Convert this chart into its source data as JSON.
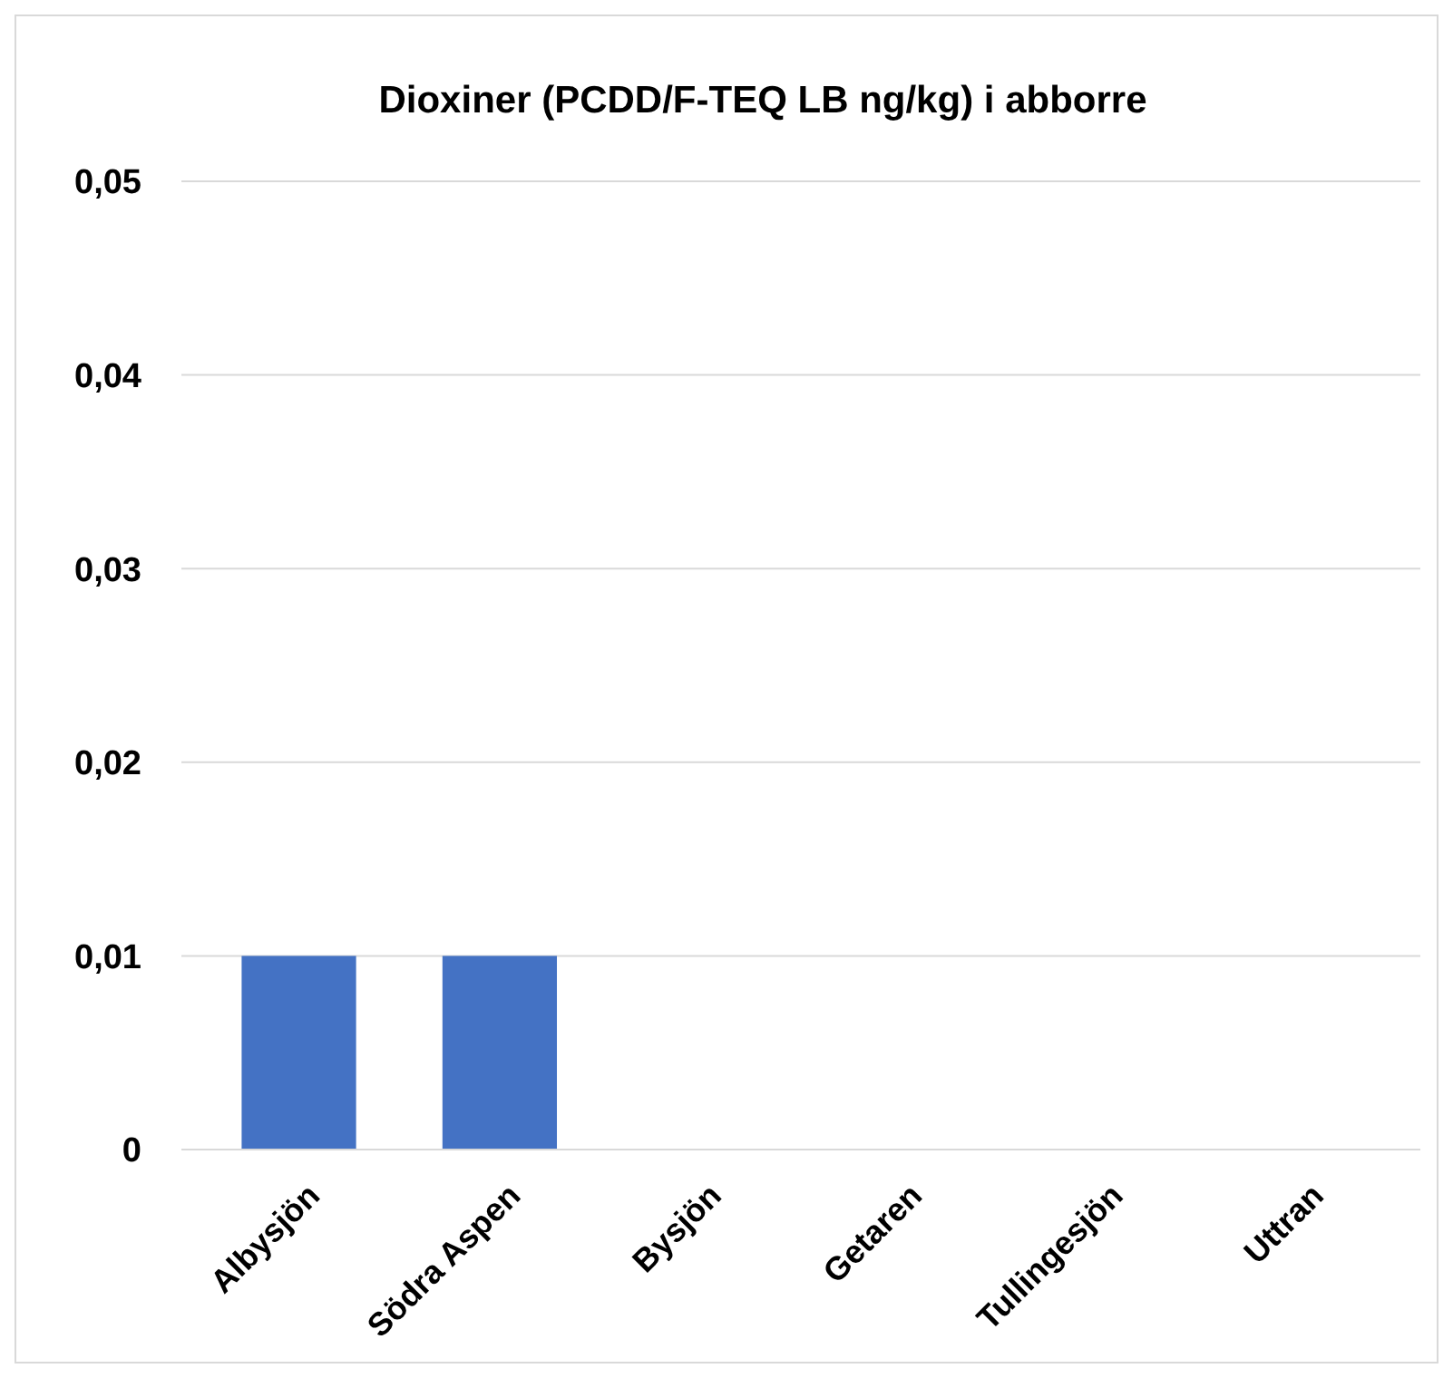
{
  "chart_data": {
    "type": "bar",
    "title": "Dioxiner (PCDD/F-TEQ LB ng/kg) i abborre",
    "categories": [
      "Albysjön",
      "Södra Aspen",
      "Bysjön",
      "Getaren",
      "Tullingesjön",
      "Uttran"
    ],
    "values": [
      0.01,
      0.01,
      0,
      0,
      0,
      0
    ],
    "color": "#4472c4",
    "ylim": [
      0,
      0.05
    ],
    "yticks": [
      {
        "value": 0,
        "label": "0"
      },
      {
        "value": 0.01,
        "label": "0,01"
      },
      {
        "value": 0.02,
        "label": "0,02"
      },
      {
        "value": 0.03,
        "label": "0,03"
      },
      {
        "value": 0.04,
        "label": "0,04"
      },
      {
        "value": 0.05,
        "label": "0,05"
      }
    ],
    "grid": "y"
  }
}
